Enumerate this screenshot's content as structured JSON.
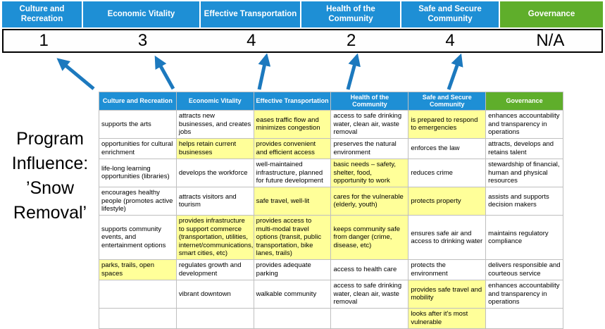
{
  "colors": {
    "header_blue": "#1E8FD5",
    "header_green": "#5FAE2B",
    "highlight_yellow": "#FFFF99",
    "arrow_blue": "#1C79BE",
    "score_border": "#000000",
    "grid_line": "#BFBFBF"
  },
  "title": {
    "text": "Program Influence: ’Snow Removal’"
  },
  "banner": {
    "columns": [
      {
        "label": "Culture and Recreation",
        "score": "1",
        "color": "blue"
      },
      {
        "label": "Economic Vitality",
        "score": "3",
        "color": "blue"
      },
      {
        "label": "Effective Transportation",
        "score": "4",
        "color": "blue"
      },
      {
        "label": "Health of the Community",
        "score": "2",
        "color": "blue"
      },
      {
        "label": "Safe and Secure Community",
        "score": "4",
        "color": "blue"
      },
      {
        "label": "Governance",
        "score": "N/A",
        "color": "green"
      }
    ]
  },
  "arrows": {
    "icon": "up-arrow-icon",
    "count": 5,
    "color_ref": "arrow_blue"
  },
  "table": {
    "headers": [
      {
        "label": "Culture and Recreation",
        "color": "blue"
      },
      {
        "label": "Economic Vitality",
        "color": "blue"
      },
      {
        "label": "Effective Transportation",
        "color": "blue"
      },
      {
        "label": "Health of the Community",
        "color": "blue"
      },
      {
        "label": "Safe and Secure Community",
        "color": "blue"
      },
      {
        "label": "Governance",
        "color": "green"
      }
    ],
    "rows": [
      [
        {
          "t": "supports the arts",
          "h": false
        },
        {
          "t": "attracts new businesses, and creates jobs",
          "h": false
        },
        {
          "t": "eases traffic flow and minimizes congestion",
          "h": true
        },
        {
          "t": "access to safe drinking water, clean air, waste removal",
          "h": false
        },
        {
          "t": "is prepared to respond to emergencies",
          "h": true
        },
        {
          "t": "enhances accountability and transparency in operations",
          "h": false
        }
      ],
      [
        {
          "t": "opportunities for cultural enrichment",
          "h": false
        },
        {
          "t": "helps retain current businesses",
          "h": true
        },
        {
          "t": "provides convenient and efficient access",
          "h": true
        },
        {
          "t": "preserves the natural environment",
          "h": false
        },
        {
          "t": "enforces the law",
          "h": false
        },
        {
          "t": "attracts, develops and retains talent",
          "h": false
        }
      ],
      [
        {
          "t": "life-long learning opportunities (libraries)",
          "h": false
        },
        {
          "t": "develops the workforce",
          "h": false
        },
        {
          "t": "well-maintained infrastructure, planned for future development",
          "h": false
        },
        {
          "t": "basic needs – safety, shelter, food, opportunity to work",
          "h": true
        },
        {
          "t": "reduces crime",
          "h": false
        },
        {
          "t": "stewardship of financial, human and physical resources",
          "h": false
        }
      ],
      [
        {
          "t": "encourages healthy people (promotes active lifestyle)",
          "h": false
        },
        {
          "t": "attracts visitors and tourism",
          "h": false
        },
        {
          "t": "safe travel, well-lit",
          "h": true
        },
        {
          "t": "cares for the vulnerable (elderly, youth)",
          "h": true
        },
        {
          "t": "protects property",
          "h": true
        },
        {
          "t": "assists and supports decision makers",
          "h": false
        }
      ],
      [
        {
          "t": "supports community events, and entertainment options",
          "h": false
        },
        {
          "t": "provides infrastructure to support commerce (transportation, utilities, internet/communications, smart cities, etc)",
          "h": true
        },
        {
          "t": "provides access to multi-modal travel options (transit, public transportation, bike lanes, trails)",
          "h": true
        },
        {
          "t": "keeps community safe from danger (crime, disease, etc)",
          "h": true
        },
        {
          "t": "ensures safe air and access to drinking water",
          "h": false
        },
        {
          "t": "maintains regulatory compliance",
          "h": false
        }
      ],
      [
        {
          "t": "parks, trails, open spaces",
          "h": true
        },
        {
          "t": "regulates growth and development",
          "h": false
        },
        {
          "t": "provides adequate parking",
          "h": false
        },
        {
          "t": "access to health care",
          "h": false
        },
        {
          "t": "protects the environment",
          "h": false
        },
        {
          "t": "delivers responsible and courteous service",
          "h": false
        }
      ],
      [
        {
          "t": "",
          "h": false
        },
        {
          "t": "vibrant downtown",
          "h": false
        },
        {
          "t": "walkable community",
          "h": false
        },
        {
          "t": "access to safe drinking water, clean air, waste removal",
          "h": false
        },
        {
          "t": "provides safe travel and mobility",
          "h": true
        },
        {
          "t": "enhances accountability and transparency in operations",
          "h": false
        }
      ],
      [
        {
          "t": "",
          "h": false
        },
        {
          "t": "",
          "h": false
        },
        {
          "t": "",
          "h": false
        },
        {
          "t": "",
          "h": false
        },
        {
          "t": "looks after it's most vulnerable",
          "h": true
        },
        {
          "t": "",
          "h": false
        }
      ]
    ]
  }
}
